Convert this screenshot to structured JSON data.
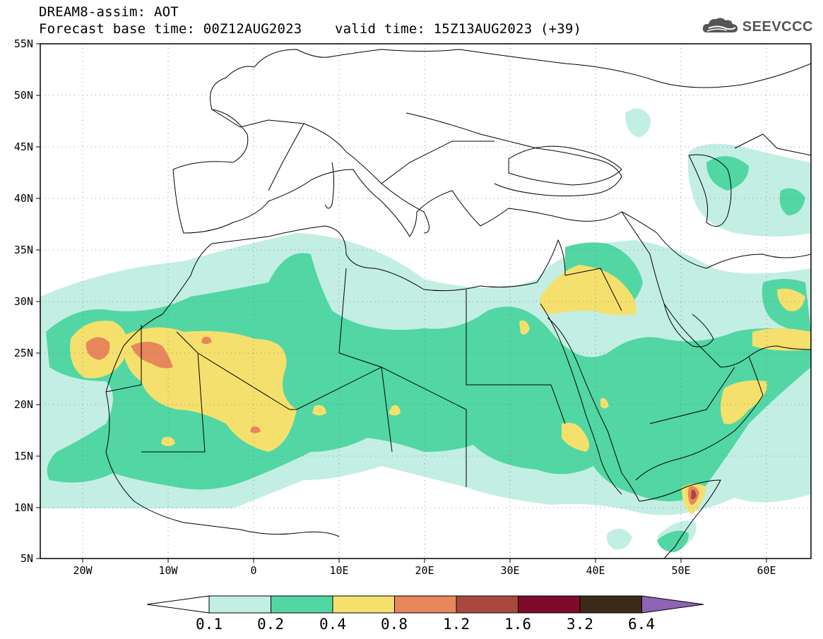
{
  "header": {
    "line1": "DREAM8-assim: AOT",
    "line2": "Forecast base time: 00Z12AUG2023    valid time: 15Z13AUG2023 (+39)",
    "logo_text": "SEEVCCC",
    "logo_icon": "cloud-icon"
  },
  "map": {
    "variable": "AOT",
    "lon_range": [
      -25,
      65
    ],
    "lat_range": [
      5,
      55
    ],
    "lat_labels": [
      "55N",
      "50N",
      "45N",
      "40N",
      "35N",
      "30N",
      "25N",
      "20N",
      "15N",
      "10N",
      "5N"
    ],
    "lon_labels": [
      "20W",
      "10W",
      "0",
      "10E",
      "20E",
      "30E",
      "40E",
      "50E",
      "60E"
    ],
    "grid": true
  },
  "colorbar": {
    "labels": [
      "0.1",
      "0.2",
      "0.4",
      "0.8",
      "1.2",
      "1.6",
      "3.2",
      "6.4"
    ],
    "colors": [
      "#ffffff",
      "#c3eee4",
      "#52d6a3",
      "#f5e06e",
      "#e8865c",
      "#a8483e",
      "#7e0a2c",
      "#3b2a1a",
      "#8f64b5"
    ]
  }
}
